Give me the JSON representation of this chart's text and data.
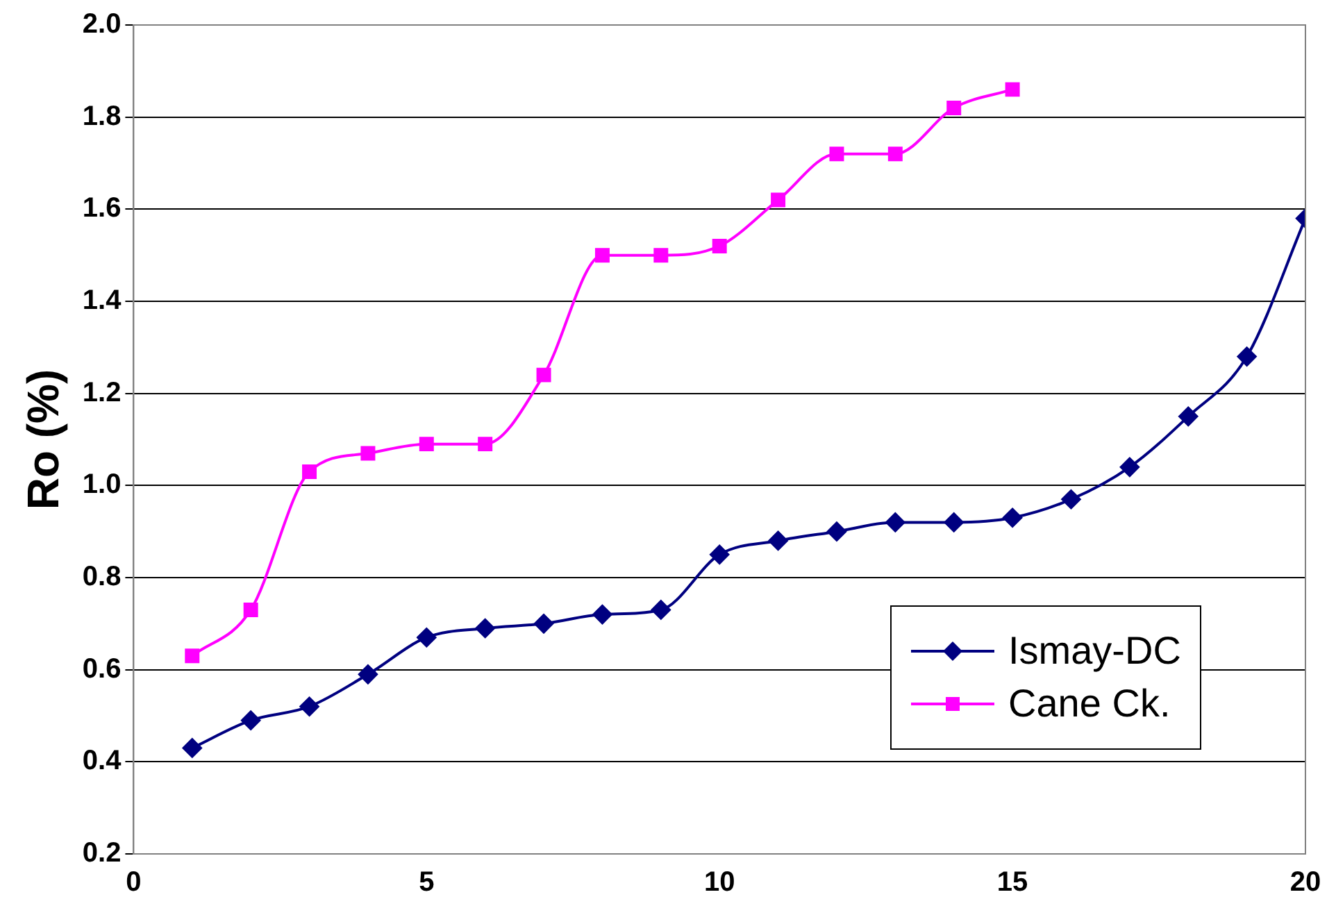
{
  "chart_data": {
    "type": "line",
    "ylabel": "Ro (%)",
    "x": [
      1,
      2,
      3,
      4,
      5,
      6,
      7,
      8,
      9,
      10,
      11,
      12,
      13,
      14,
      15,
      16,
      17,
      18,
      19,
      20
    ],
    "series": [
      {
        "name": "Ismay-DC",
        "color": "#000080",
        "marker": "diamond",
        "values": [
          0.43,
          0.49,
          0.52,
          0.59,
          0.67,
          0.69,
          0.7,
          0.72,
          0.73,
          0.85,
          0.88,
          0.9,
          0.92,
          0.92,
          0.93,
          0.97,
          1.04,
          1.15,
          1.28,
          1.58
        ]
      },
      {
        "name": "Cane Ck.",
        "color": "#ff00ff",
        "marker": "square",
        "values": [
          0.63,
          0.73,
          1.03,
          1.07,
          1.09,
          1.09,
          1.24,
          1.5,
          1.5,
          1.52,
          1.62,
          1.72,
          1.72,
          1.82,
          1.86,
          null,
          null,
          null,
          null,
          null
        ]
      }
    ],
    "xlim": [
      0,
      20
    ],
    "xticks": [
      0,
      5,
      10,
      15,
      20
    ],
    "ylim": [
      0.2,
      2.0
    ],
    "yticks": [
      0.2,
      0.4,
      0.6,
      0.8,
      {
        "value": 1,
        "label": "1.0"
      },
      1.2,
      1.4,
      1.6,
      1.8,
      {
        "value": 2,
        "label": "2.0"
      }
    ],
    "grid": "y",
    "legend": "bottom right"
  }
}
